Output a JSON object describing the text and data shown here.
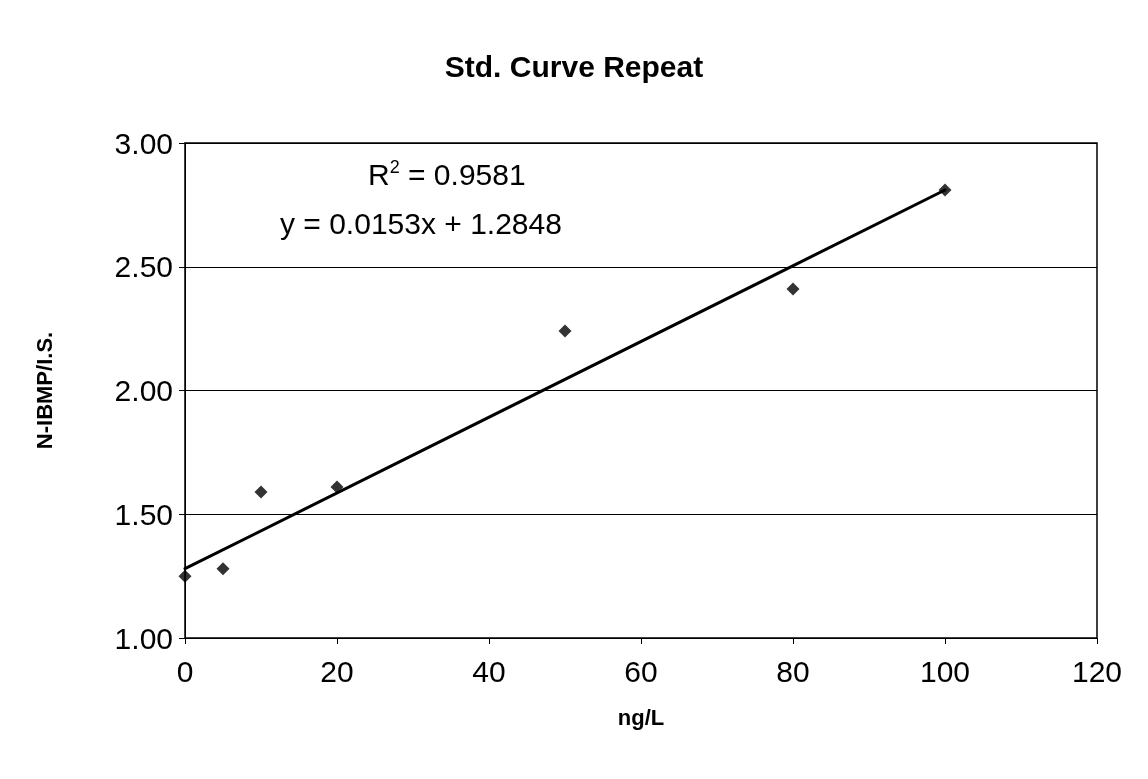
{
  "chart_data": {
    "type": "scatter",
    "title": "Std. Curve Repeat",
    "xlabel": "ng/L",
    "ylabel": "N-IBMP/I.S.",
    "series": [
      {
        "color": "#000000",
        "x": [
          0,
          5,
          10,
          20,
          50,
          80,
          100
        ],
        "values": [
          1.25,
          1.28,
          1.59,
          1.61,
          2.24,
          2.41,
          2.81
        ],
        "marker": "diamond"
      },
      {
        "type": "line",
        "color": "#000000",
        "x": [
          0,
          100
        ],
        "values": [
          1.28,
          2.81
        ],
        "marker": "none",
        "line_style": "solid"
      }
    ],
    "xlim": [
      0,
      120
    ],
    "xticks": [
      0,
      20,
      40,
      60,
      80,
      100,
      120
    ],
    "ylim": [
      1,
      3
    ],
    "yticks": [
      {
        "value": 1,
        "label": "1.00"
      },
      {
        "value": 1.5,
        "label": "1.50"
      },
      {
        "value": 2,
        "label": "2.00"
      },
      {
        "value": 2.5,
        "label": "2.50"
      },
      {
        "value": 3,
        "label": "3.00"
      }
    ],
    "grid": "y",
    "annotations": [
      "R$^{2}$ = 0.9581",
      "y = 0.0153x + 1.2848"
    ]
  }
}
